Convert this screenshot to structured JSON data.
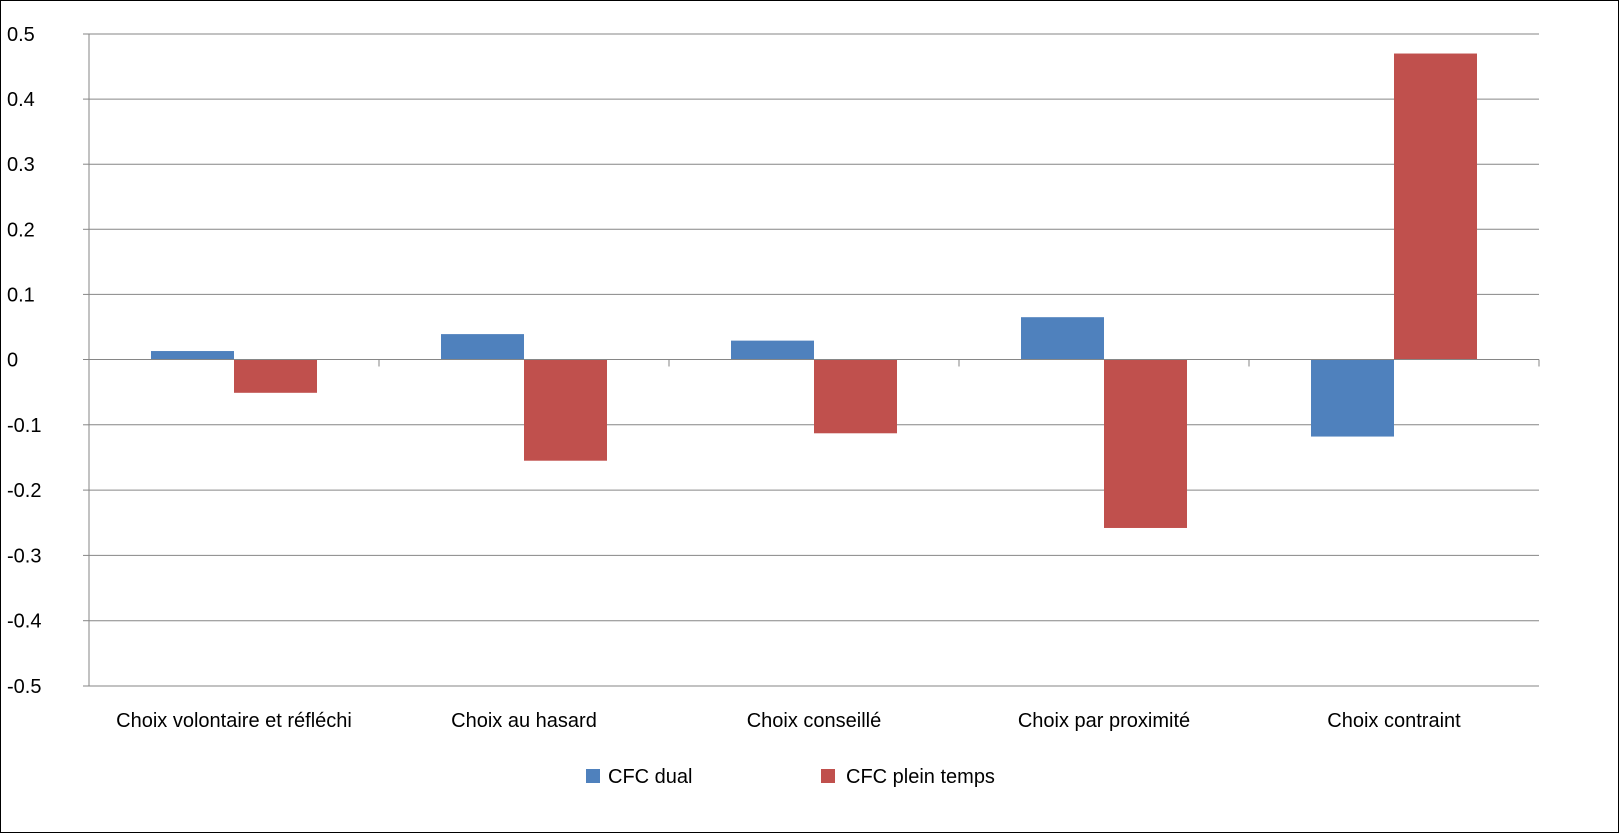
{
  "chart_data": {
    "type": "bar",
    "categories": [
      "Choix volontaire et réfléchi",
      "Choix au hasard",
      "Choix conseillé",
      "Choix par proximité",
      "Choix contraint"
    ],
    "series": [
      {
        "name": "CFC dual",
        "color": "#4F81BD",
        "values": [
          0.013,
          0.039,
          0.029,
          0.065,
          -0.118
        ]
      },
      {
        "name": "CFC plein temps",
        "color": "#C0504D",
        "values": [
          -0.051,
          -0.155,
          -0.113,
          -0.258,
          0.47
        ]
      }
    ],
    "yticks": [
      "0.5",
      "0.4",
      "0.3",
      "0.2",
      "0.1",
      "0",
      "-0.1",
      "-0.2",
      "-0.3",
      "-0.4",
      "-0.5"
    ],
    "ylim": [
      -0.5,
      0.5
    ],
    "grid": true,
    "legend_position": "bottom",
    "title": "",
    "xlabel": "",
    "ylabel": ""
  }
}
